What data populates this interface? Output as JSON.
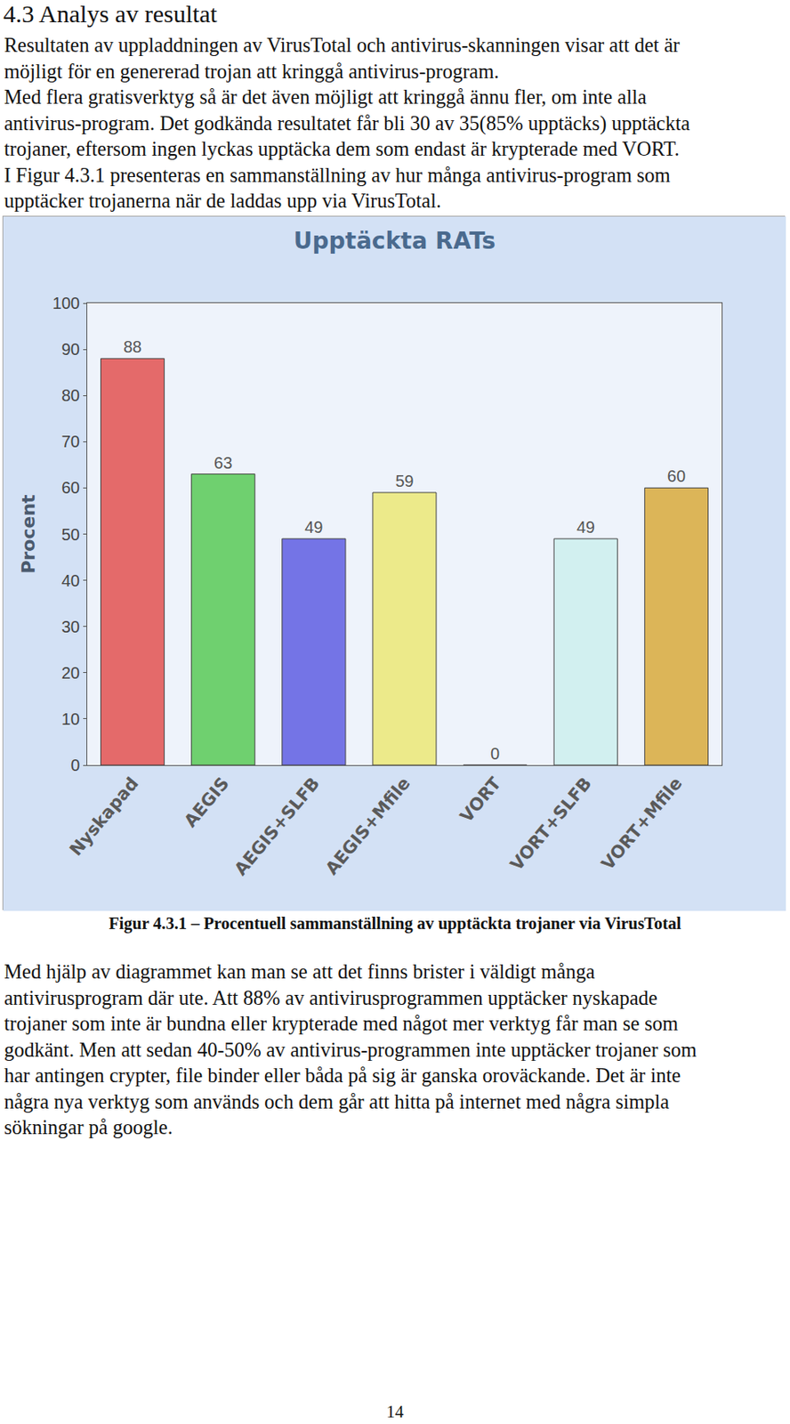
{
  "heading": "4.3 Analys av resultat",
  "text_before": [
    "Resultaten av uppladdningen av VirusTotal och antivirus-skanningen visar att det är",
    "möjligt för en genererad trojan att kringgå antivirus-program.",
    "Med flera gratisverktyg så är det även möjligt att kringgå ännu fler, om inte alla",
    "antivirus-program. Det godkända resultatet får bli 30 av 35(85% upptäcks) upptäckta",
    "trojaner, eftersom ingen lyckas upptäcka dem som endast är krypterade med VORT.",
    "I Figur 4.3.1 presenteras en sammanställning av hur många antivirus-program som",
    "upptäcker trojanerna när de laddas upp via VirusTotal."
  ],
  "chart_data": {
    "type": "bar",
    "title": "Upptäckta RATs",
    "y_label": "Procent",
    "categories": [
      "Nyskapad",
      "AEGIS",
      "AEGIS+SLFB",
      "AEGIS+Mfile",
      "VORT",
      "VORT+SLFB",
      "VORT+Mfile"
    ],
    "values": [
      88,
      63,
      49,
      59,
      0,
      49,
      60
    ],
    "colors": [
      "#e46a6a",
      "#6fd06f",
      "#7474e6",
      "#ecea8a",
      "#ea66ea",
      "#d2f0f0",
      "#dcb558"
    ],
    "ylim": [
      0,
      100
    ],
    "yticks": [
      0,
      10,
      20,
      30,
      40,
      50,
      60,
      70,
      80,
      90,
      100
    ],
    "grid": false,
    "data_labels": true
  },
  "caption": "Figur 4.3.1 – Procentuell sammanställning av upptäckta trojaner via VirusTotal",
  "text_after": [
    "Med hjälp av diagrammet kan man se att det finns brister i väldigt många",
    "antivirusprogram där ute. Att 88% av antivirusprogrammen upptäcker nyskapade",
    "trojaner som inte är bundna eller krypterade med något mer verktyg får man se som",
    "godkänt. Men att sedan 40-50% av antivirus-programmen inte upptäcker trojaner som",
    "har antingen crypter, file binder eller båda på sig är ganska oroväckande. Det är inte",
    "några nya verktyg som används och dem går att hitta på internet med några simpla",
    "sökningar på google."
  ],
  "page_number": "14"
}
